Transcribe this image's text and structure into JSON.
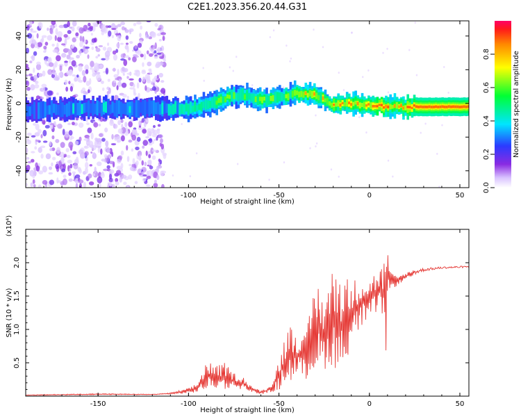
{
  "title": "C2E1.2023.356.20.44.G31",
  "chart_data": [
    {
      "type": "heatmap",
      "xlabel": "Height of straight line (km)",
      "ylabel": "Frequency (Hz)",
      "xlim": [
        -190,
        55
      ],
      "ylim": [
        -50,
        49
      ],
      "xticks": [
        "-150",
        "-100",
        "-50",
        "0",
        "50"
      ],
      "yticks": [
        "-40",
        "-20",
        "0",
        "20",
        "40"
      ],
      "colorbar": {
        "label": "Normalized spectral amplitude",
        "range": [
          0,
          1
        ],
        "ticks": [
          "0.0",
          "0.2",
          "0.4",
          "0.6",
          "0.8"
        ]
      },
      "ridge": {
        "description_points_x": [
          -190,
          -150,
          -120,
          -110,
          -100,
          -90,
          -80,
          -70,
          -60,
          -50,
          -40,
          -30,
          -20,
          -10,
          0,
          10,
          20,
          30,
          40,
          55
        ],
        "center_frequency": [
          -4,
          -3,
          -3,
          -3,
          -3,
          -1,
          3,
          5,
          2,
          3,
          6,
          5,
          -1,
          0,
          -1,
          -2,
          -2,
          -2,
          -2,
          -2
        ],
        "peak_amplitude": [
          0.35,
          0.4,
          0.35,
          0.4,
          0.55,
          0.6,
          0.65,
          0.6,
          0.7,
          0.65,
          0.7,
          0.75,
          0.85,
          0.85,
          0.9,
          0.95,
          1.0,
          1.0,
          1.0,
          1.0
        ]
      }
    },
    {
      "type": "line",
      "xlabel": "Height of straight line (km)",
      "ylabel": "SNR (10 * v/v)",
      "multiplier_label": "(x10⁴)",
      "xlim": [
        -190,
        55
      ],
      "ylim": [
        0,
        2.5
      ],
      "xticks": [
        "-150",
        "-100",
        "-50",
        "0",
        "50"
      ],
      "yticks": [
        "0.5",
        "1.0",
        "1.5",
        "2.0"
      ],
      "color": "#e53935",
      "envelope": {
        "x": [
          -190,
          -150,
          -120,
          -110,
          -100,
          -95,
          -90,
          -85,
          -80,
          -75,
          -70,
          -65,
          -60,
          -55,
          -50,
          -45,
          -40,
          -35,
          -30,
          -25,
          -20,
          -15,
          -10,
          -5,
          0,
          5,
          8,
          9,
          10,
          12,
          15,
          20,
          25,
          30,
          40,
          50,
          55
        ],
        "baseline": [
          0.01,
          0.02,
          0.02,
          0.03,
          0.04,
          0.06,
          0.08,
          0.12,
          0.1,
          0.12,
          0.1,
          0.06,
          0.03,
          0.05,
          0.08,
          0.2,
          0.3,
          0.25,
          0.35,
          0.4,
          0.45,
          0.3,
          0.8,
          1.0,
          1.1,
          1.3,
          1.1,
          0.5,
          1.4,
          1.6,
          1.65,
          1.75,
          1.82,
          1.87,
          1.91,
          1.92,
          1.93
        ],
        "peak": [
          0.02,
          0.04,
          0.03,
          0.05,
          0.12,
          0.2,
          0.55,
          0.45,
          0.5,
          0.35,
          0.3,
          0.15,
          0.08,
          0.15,
          0.55,
          1.1,
          1.0,
          0.9,
          1.8,
          1.5,
          1.95,
          1.9,
          1.7,
          1.85,
          1.8,
          1.9,
          2.0,
          2.5,
          2.2,
          1.85,
          1.8,
          1.85,
          1.9,
          1.92,
          1.94,
          1.95,
          1.95
        ]
      }
    }
  ]
}
